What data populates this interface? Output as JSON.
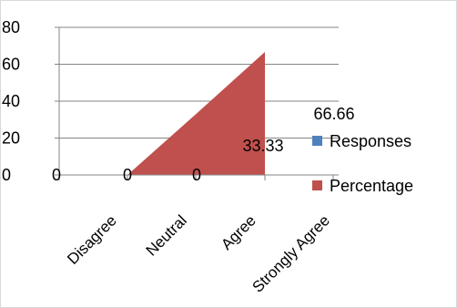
{
  "chart_data": {
    "type": "area",
    "categories": [
      "Disagree",
      "Neutral",
      "Agree",
      "Strongly Agree"
    ],
    "series": [
      {
        "name": "Responses",
        "values": [
          0,
          0,
          0,
          0
        ],
        "color": "#4F81BD",
        "data_labels": [
          "0",
          "0",
          "0",
          ""
        ]
      },
      {
        "name": "Percentage",
        "values": [
          0,
          0,
          33.33,
          66.66
        ],
        "color": "#C0504D",
        "data_labels": [
          "",
          "",
          "33.33",
          "66.66"
        ]
      }
    ],
    "ylim": [
      0,
      80
    ],
    "yticks": [
      "0",
      "20",
      "40",
      "60",
      "80"
    ],
    "legend": "right",
    "grid": true
  }
}
